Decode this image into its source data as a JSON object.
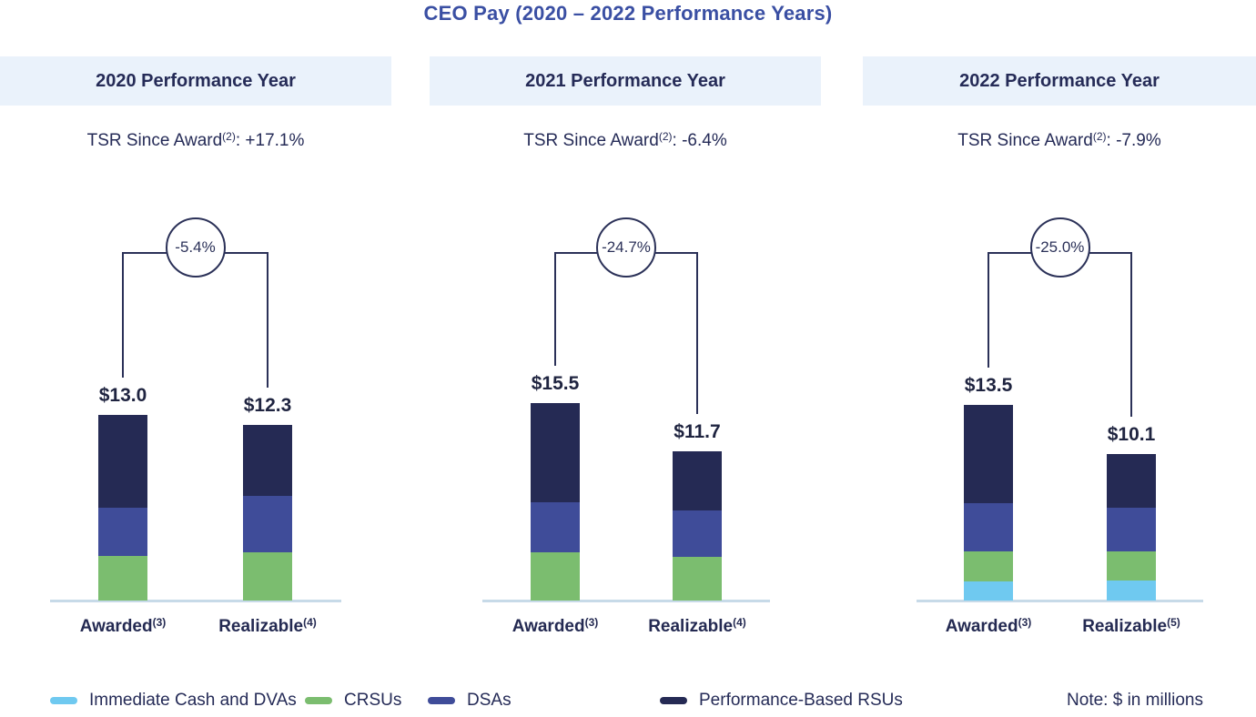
{
  "title": "CEO Pay (2020 – 2022 Performance Years)",
  "note": {
    "text": "Note: $ in millions"
  },
  "colors": {
    "title_text": "#3A4FA3",
    "body_text": "#252B57",
    "value_text": "#1F2440",
    "header_background": "#EAF2FB",
    "bracket_line": "#2B3158",
    "axis_line": "#C7DAE8",
    "immediate_cash_dvas": "#6FC9F0",
    "crsus": "#7BBD6F",
    "dsas": "#3F4C99",
    "performance_rsus": "#252A54"
  },
  "legend": {
    "items": [
      {
        "id": "immediate-cash-dvas",
        "label": "Immediate Cash and DVAs",
        "color": "#6FC9F0"
      },
      {
        "id": "crsus",
        "label": "CRSUs",
        "color": "#7BBD6F"
      },
      {
        "id": "dsas",
        "label": "DSAs",
        "color": "#3F4C99"
      },
      {
        "id": "performance-rsus",
        "label": "Performance-Based RSUs",
        "color": "#252A54"
      }
    ]
  },
  "chart_data": [
    {
      "type": "bar",
      "stacked": true,
      "title": "2020 Performance Year",
      "tsr": {
        "prefix": "TSR Since Award",
        "superscript": "(2)",
        "separator": ": ",
        "value": "+17.1%"
      },
      "delta_label": "-5.4%",
      "categories": [
        "Awarded",
        "Realizable"
      ],
      "category_superscripts": [
        "(3)",
        "(4)"
      ],
      "totals": [
        13.0,
        12.3
      ],
      "total_labels": [
        "$13.0",
        "$12.3"
      ],
      "series": [
        {
          "id": "immediate-cash-dvas",
          "name": "Immediate Cash and DVAs",
          "color": "#6FC9F0",
          "values": [
            0,
            0
          ]
        },
        {
          "id": "crsus",
          "name": "CRSUs",
          "color": "#7BBD6F",
          "values": [
            3.1,
            3.4
          ]
        },
        {
          "id": "dsas",
          "name": "DSAs",
          "color": "#3F4C99",
          "values": [
            3.4,
            3.9
          ]
        },
        {
          "id": "performance-rsus",
          "name": "Performance-Based RSUs",
          "color": "#252A54",
          "values": [
            6.5,
            5.0
          ]
        }
      ]
    },
    {
      "type": "bar",
      "stacked": true,
      "title": "2021 Performance Year",
      "tsr": {
        "prefix": "TSR Since Award",
        "superscript": "(2)",
        "separator": ": ",
        "value": "-6.4%"
      },
      "delta_label": "-24.7%",
      "categories": [
        "Awarded",
        "Realizable"
      ],
      "category_superscripts": [
        "(3)",
        "(4)"
      ],
      "totals": [
        15.5,
        11.7
      ],
      "total_labels": [
        "$15.5",
        "$11.7"
      ],
      "series": [
        {
          "id": "immediate-cash-dvas",
          "name": "Immediate Cash and DVAs",
          "color": "#6FC9F0",
          "values": [
            0,
            0
          ]
        },
        {
          "id": "crsus",
          "name": "CRSUs",
          "color": "#7BBD6F",
          "values": [
            3.8,
            3.4
          ]
        },
        {
          "id": "dsas",
          "name": "DSAs",
          "color": "#3F4C99",
          "values": [
            3.9,
            3.7
          ]
        },
        {
          "id": "performance-rsus",
          "name": "Performance-Based RSUs",
          "color": "#252A54",
          "values": [
            7.8,
            4.6
          ]
        }
      ]
    },
    {
      "type": "bar",
      "stacked": true,
      "title": "2022 Performance Year",
      "tsr": {
        "prefix": "TSR Since Award",
        "superscript": "(2)",
        "separator": ": ",
        "value": "-7.9%"
      },
      "delta_label": "-25.0%",
      "categories": [
        "Awarded",
        "Realizable"
      ],
      "category_superscripts": [
        "(3)",
        "(5)"
      ],
      "totals": [
        13.5,
        10.1
      ],
      "total_labels": [
        "$13.5",
        "$10.1"
      ],
      "series": [
        {
          "id": "immediate-cash-dvas",
          "name": "Immediate Cash and DVAs",
          "color": "#6FC9F0",
          "values": [
            1.3,
            1.4
          ]
        },
        {
          "id": "crsus",
          "name": "CRSUs",
          "color": "#7BBD6F",
          "values": [
            2.1,
            2.0
          ]
        },
        {
          "id": "dsas",
          "name": "DSAs",
          "color": "#3F4C99",
          "values": [
            3.3,
            3.0
          ]
        },
        {
          "id": "performance-rsus",
          "name": "Performance-Based RSUs",
          "color": "#252A54",
          "values": [
            6.8,
            3.7
          ]
        }
      ]
    }
  ]
}
